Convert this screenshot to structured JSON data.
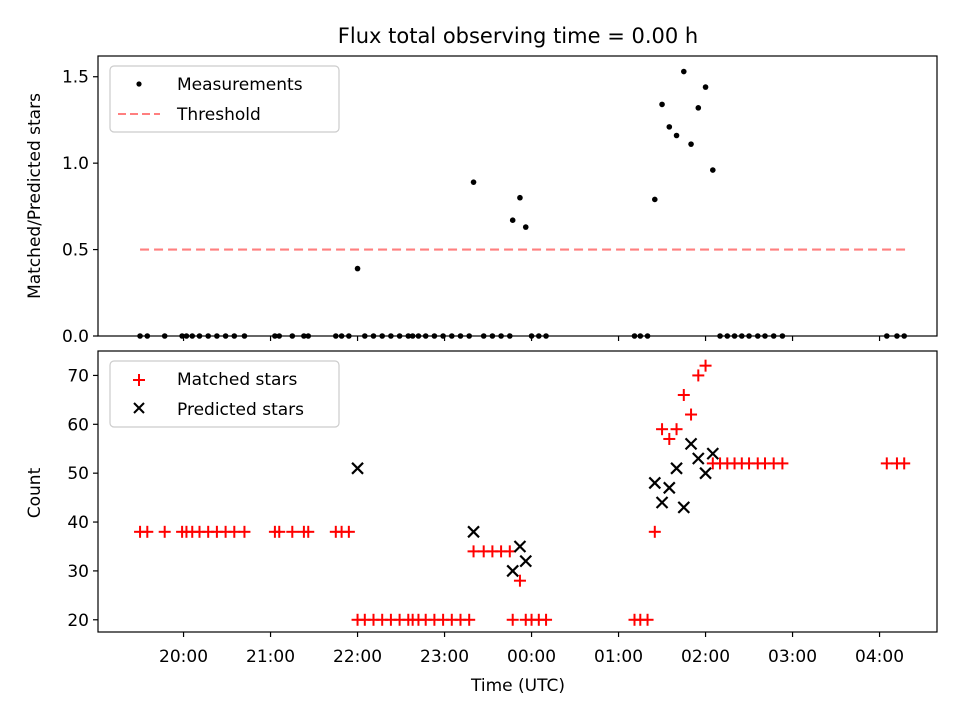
{
  "chart_data": [
    {
      "type": "scatter",
      "title": "Flux total observing time = 0.00 h",
      "xlabel": "",
      "ylabel": "Matched/Predicted stars",
      "ylim": [
        0,
        1.62
      ],
      "xlim": [
        "19:01",
        "04:43"
      ],
      "yticks": [
        "0.0",
        "0.5",
        "1.0",
        "1.5"
      ],
      "legend_position": "upper-left",
      "series": [
        {
          "name": "Measurements",
          "color": "#000000",
          "marker": "dot",
          "points": [
            [
              "19:30",
              0
            ],
            [
              "19:35",
              0
            ],
            [
              "19:47",
              0
            ],
            [
              "19:59",
              0
            ],
            [
              "20:02",
              0
            ],
            [
              "20:06",
              0
            ],
            [
              "20:11",
              0
            ],
            [
              "20:17",
              0
            ],
            [
              "20:23",
              0
            ],
            [
              "20:29",
              0
            ],
            [
              "20:35",
              0
            ],
            [
              "20:42",
              0
            ],
            [
              "21:03",
              0
            ],
            [
              "21:06",
              0
            ],
            [
              "21:15",
              0
            ],
            [
              "21:23",
              0
            ],
            [
              "21:26",
              0
            ],
            [
              "21:45",
              0
            ],
            [
              "21:49",
              0
            ],
            [
              "21:54",
              0
            ],
            [
              "22:00",
              0.39
            ],
            [
              "22:05",
              0
            ],
            [
              "22:11",
              0
            ],
            [
              "22:17",
              0
            ],
            [
              "22:23",
              0
            ],
            [
              "22:29",
              0
            ],
            [
              "22:35",
              0
            ],
            [
              "22:38",
              0
            ],
            [
              "22:42",
              0
            ],
            [
              "22:47",
              0
            ],
            [
              "22:53",
              0
            ],
            [
              "22:59",
              0
            ],
            [
              "23:05",
              0
            ],
            [
              "23:11",
              0
            ],
            [
              "23:17",
              0
            ],
            [
              "23:20",
              0.89
            ],
            [
              "23:27",
              0
            ],
            [
              "23:33",
              0
            ],
            [
              "23:39",
              0
            ],
            [
              "23:45",
              0
            ],
            [
              "23:47",
              0.67
            ],
            [
              "23:52",
              0.8
            ],
            [
              "23:56",
              0.63
            ],
            [
              "00:00",
              0
            ],
            [
              "00:05",
              0
            ],
            [
              "00:10",
              0
            ],
            [
              "01:11",
              0
            ],
            [
              "01:15",
              0
            ],
            [
              "01:20",
              0
            ],
            [
              "01:25",
              0.79
            ],
            [
              "01:30",
              1.34
            ],
            [
              "01:35",
              1.21
            ],
            [
              "01:40",
              1.16
            ],
            [
              "01:45",
              1.53
            ],
            [
              "01:50",
              1.11
            ],
            [
              "01:55",
              1.32
            ],
            [
              "02:00",
              1.44
            ],
            [
              "02:05",
              0.96
            ],
            [
              "02:10",
              0
            ],
            [
              "02:15",
              0
            ],
            [
              "02:20",
              0
            ],
            [
              "02:25",
              0
            ],
            [
              "02:30",
              0
            ],
            [
              "02:36",
              0
            ],
            [
              "02:41",
              0
            ],
            [
              "02:47",
              0
            ],
            [
              "02:53",
              0
            ],
            [
              "04:05",
              0
            ],
            [
              "04:12",
              0
            ],
            [
              "04:17",
              0
            ]
          ]
        },
        {
          "name": "Threshold",
          "color": "#ff7f7f",
          "line": "dashed",
          "points": [
            [
              "19:30",
              0.5
            ],
            [
              "04:18",
              0.5
            ]
          ]
        }
      ]
    },
    {
      "type": "scatter",
      "title": "",
      "xlabel": "Time (UTC)",
      "ylabel": "Count",
      "ylim": [
        17.5,
        75
      ],
      "xlim": [
        "19:01",
        "04:43"
      ],
      "yticks": [
        "20",
        "30",
        "40",
        "50",
        "60",
        "70"
      ],
      "xticks": [
        "20:00",
        "21:00",
        "22:00",
        "23:00",
        "00:00",
        "01:00",
        "02:00",
        "03:00",
        "04:00"
      ],
      "legend_position": "upper-left",
      "series": [
        {
          "name": "Matched stars",
          "color": "#ff0000",
          "marker": "plus",
          "points": [
            [
              "19:30",
              38
            ],
            [
              "19:35",
              38
            ],
            [
              "19:47",
              38
            ],
            [
              "19:59",
              38
            ],
            [
              "20:02",
              38
            ],
            [
              "20:06",
              38
            ],
            [
              "20:11",
              38
            ],
            [
              "20:17",
              38
            ],
            [
              "20:23",
              38
            ],
            [
              "20:29",
              38
            ],
            [
              "20:35",
              38
            ],
            [
              "20:42",
              38
            ],
            [
              "21:03",
              38
            ],
            [
              "21:06",
              38
            ],
            [
              "21:15",
              38
            ],
            [
              "21:23",
              38
            ],
            [
              "21:26",
              38
            ],
            [
              "21:45",
              38
            ],
            [
              "21:49",
              38
            ],
            [
              "21:54",
              38
            ],
            [
              "22:00",
              20
            ],
            [
              "22:05",
              20
            ],
            [
              "22:11",
              20
            ],
            [
              "22:17",
              20
            ],
            [
              "22:23",
              20
            ],
            [
              "22:29",
              20
            ],
            [
              "22:35",
              20
            ],
            [
              "22:38",
              20
            ],
            [
              "22:42",
              20
            ],
            [
              "22:47",
              20
            ],
            [
              "22:53",
              20
            ],
            [
              "22:59",
              20
            ],
            [
              "23:05",
              20
            ],
            [
              "23:11",
              20
            ],
            [
              "23:17",
              20
            ],
            [
              "23:20",
              34
            ],
            [
              "23:27",
              34
            ],
            [
              "23:33",
              34
            ],
            [
              "23:39",
              34
            ],
            [
              "23:45",
              34
            ],
            [
              "23:47",
              20
            ],
            [
              "23:52",
              28
            ],
            [
              "23:56",
              20
            ],
            [
              "00:00",
              20
            ],
            [
              "00:05",
              20
            ],
            [
              "00:10",
              20
            ],
            [
              "01:11",
              20
            ],
            [
              "01:15",
              20
            ],
            [
              "01:20",
              20
            ],
            [
              "01:25",
              38
            ],
            [
              "01:30",
              59
            ],
            [
              "01:35",
              57
            ],
            [
              "01:40",
              59
            ],
            [
              "01:45",
              66
            ],
            [
              "01:50",
              62
            ],
            [
              "01:55",
              70
            ],
            [
              "02:00",
              72
            ],
            [
              "02:05",
              52
            ],
            [
              "02:10",
              52
            ],
            [
              "02:15",
              52
            ],
            [
              "02:20",
              52
            ],
            [
              "02:25",
              52
            ],
            [
              "02:30",
              52
            ],
            [
              "02:36",
              52
            ],
            [
              "02:41",
              52
            ],
            [
              "02:47",
              52
            ],
            [
              "02:53",
              52
            ],
            [
              "04:05",
              52
            ],
            [
              "04:12",
              52
            ],
            [
              "04:17",
              52
            ]
          ]
        },
        {
          "name": "Predicted stars",
          "color": "#000000",
          "marker": "x",
          "points": [
            [
              "22:00",
              51
            ],
            [
              "23:20",
              38
            ],
            [
              "23:47",
              30
            ],
            [
              "23:52",
              35
            ],
            [
              "23:56",
              32
            ],
            [
              "01:25",
              48
            ],
            [
              "01:30",
              44
            ],
            [
              "01:35",
              47
            ],
            [
              "01:40",
              51
            ],
            [
              "01:45",
              43
            ],
            [
              "01:50",
              56
            ],
            [
              "01:55",
              53
            ],
            [
              "02:00",
              50
            ],
            [
              "02:05",
              54
            ]
          ]
        }
      ]
    }
  ]
}
